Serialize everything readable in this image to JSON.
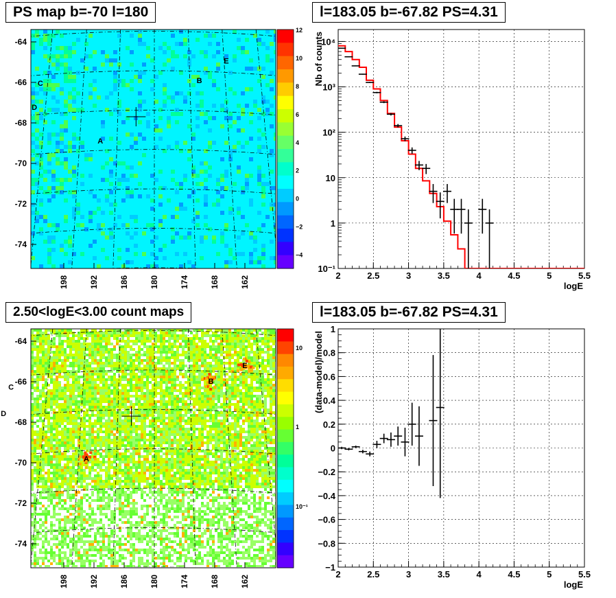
{
  "chart_data": [
    {
      "type": "heatmap",
      "title": "PS map b=-70 l=180",
      "x_ticks": [
        "198",
        "192",
        "186",
        "180",
        "174",
        "168",
        "162"
      ],
      "y_ticks": [
        "-64",
        "-66",
        "-68",
        "-70",
        "-72",
        "-74"
      ],
      "colorbar_ticks": [
        "12",
        "10",
        "8",
        "6",
        "4",
        "2",
        "0",
        "−2",
        "−4"
      ],
      "colorbar_range": [
        -5,
        12
      ],
      "sources": [
        {
          "name": "A",
          "l": 189.0,
          "b": -69.0
        },
        {
          "name": "B",
          "l": 172.5,
          "b": -65.95
        },
        {
          "name": "C",
          "l": 199.0,
          "b": -65.9
        },
        {
          "name": "D",
          "l": 200.0,
          "b": -67.1
        },
        {
          "name": "E",
          "l": 168.0,
          "b": -64.9
        }
      ],
      "marker": {
        "l": 183.05,
        "b": -67.82
      },
      "colors": {
        "background": "#00f5ff",
        "patch_light": "#00ff99",
        "patch_green": "#4dff4d",
        "patch_blue": "#00ccff",
        "patch_dark": "#009dff"
      }
    },
    {
      "type": "line",
      "title": "l=183.05 b=-67.82 PS=4.31",
      "xlabel": "logE",
      "ylabel": "Nb of counts",
      "xlim": [
        2,
        5.5
      ],
      "ylim": [
        0.1,
        10000
      ],
      "yscale": "log",
      "grid": true,
      "x_ticks": [
        "2",
        "2.5",
        "3",
        "3.5",
        "4",
        "4.5",
        "5",
        "5.5"
      ],
      "y_ticks": [
        "10⁴",
        "10³",
        "10²",
        "10",
        "1",
        "10⁻¹"
      ],
      "data_points": [
        {
          "x": 2.05,
          "y": 7100
        },
        {
          "x": 2.15,
          "y": 4600
        },
        {
          "x": 2.25,
          "y": 2900
        },
        {
          "x": 2.35,
          "y": 1900
        },
        {
          "x": 2.45,
          "y": 1250
        },
        {
          "x": 2.55,
          "y": 750
        },
        {
          "x": 2.65,
          "y": 460
        },
        {
          "x": 2.75,
          "y": 250
        },
        {
          "x": 2.85,
          "y": 140
        },
        {
          "x": 2.95,
          "y": 72
        },
        {
          "x": 3.05,
          "y": 40
        },
        {
          "x": 3.15,
          "y": 19
        },
        {
          "x": 3.25,
          "y": 16
        },
        {
          "x": 3.35,
          "y": 5
        },
        {
          "x": 3.45,
          "y": 3
        },
        {
          "x": 3.55,
          "y": 5
        },
        {
          "x": 3.65,
          "y": 2
        },
        {
          "x": 3.75,
          "y": 2
        },
        {
          "x": 3.85,
          "y": 1
        },
        {
          "x": 4.05,
          "y": 2
        },
        {
          "x": 4.15,
          "y": 1
        }
      ],
      "model_step": [
        {
          "x0": 2.0,
          "y": 8000
        },
        {
          "x0": 2.1,
          "y": 6000
        },
        {
          "x0": 2.2,
          "y": 4000
        },
        {
          "x0": 2.3,
          "y": 2700
        },
        {
          "x0": 2.4,
          "y": 1400
        },
        {
          "x0": 2.5,
          "y": 900
        },
        {
          "x0": 2.6,
          "y": 500
        },
        {
          "x0": 2.7,
          "y": 260
        },
        {
          "x0": 2.8,
          "y": 130
        },
        {
          "x0": 2.9,
          "y": 65
        },
        {
          "x0": 3.0,
          "y": 33
        },
        {
          "x0": 3.1,
          "y": 16
        },
        {
          "x0": 3.2,
          "y": 8.5
        },
        {
          "x0": 3.3,
          "y": 4.5
        },
        {
          "x0": 3.4,
          "y": 2.3
        },
        {
          "x0": 3.5,
          "y": 1.1
        },
        {
          "x0": 3.6,
          "y": 0.55
        },
        {
          "x0": 3.7,
          "y": 0.27
        },
        {
          "x0": 3.8,
          "y": 0.1
        },
        {
          "x0": 5.5,
          "y": 0.1
        }
      ],
      "colors": {
        "data": "#000000",
        "model": "#ff0000"
      }
    },
    {
      "type": "heatmap",
      "title": "2.50<logE<3.00 count maps",
      "x_ticks": [
        "198",
        "192",
        "186",
        "180",
        "174",
        "168",
        "162"
      ],
      "y_ticks": [
        "-64",
        "-66",
        "-68",
        "-70",
        "-72",
        "-74"
      ],
      "colorbar_ticks": [
        "10",
        "1",
        "10⁻¹"
      ],
      "colorbar_scale": "log",
      "sources": [
        {
          "name": "A",
          "l": 189.0,
          "b": -69.9
        },
        {
          "name": "B",
          "l": 172.5,
          "b": -66.0
        },
        {
          "name": "C",
          "l": 199.0,
          "b": -66.0
        },
        {
          "name": "D",
          "l": 200.0,
          "b": -67.3
        },
        {
          "name": "E",
          "l": 168.0,
          "b": -65.1
        }
      ],
      "marker": {
        "l": 183.05,
        "b": -67.82
      },
      "colors": {
        "green": "#66ff33",
        "yellow": "#ccff00",
        "light_green": "#99ff66",
        "white": "#ffffff",
        "orange": "#ffb200",
        "red": "#ff4400"
      }
    },
    {
      "type": "scatter",
      "title": "l=183.05 b=-67.82 PS=4.31",
      "xlabel": "logE",
      "ylabel": "(data-model)/model",
      "xlim": [
        2,
        5.5
      ],
      "ylim": [
        -1,
        1
      ],
      "grid": true,
      "x_ticks": [
        "2",
        "2.5",
        "3",
        "3.5",
        "4",
        "4.5",
        "5",
        "5.5"
      ],
      "y_ticks": [
        "1",
        "0.8",
        "0.6",
        "0.4",
        "0.2",
        "0",
        "−0.2",
        "−0.4",
        "−0.6",
        "−0.8",
        "−1"
      ],
      "data_points": [
        {
          "x": 2.05,
          "y": 0.0,
          "err": 0.01
        },
        {
          "x": 2.15,
          "y": -0.01,
          "err": 0.01
        },
        {
          "x": 2.25,
          "y": 0.01,
          "err": 0.01
        },
        {
          "x": 2.35,
          "y": -0.03,
          "err": 0.015
        },
        {
          "x": 2.45,
          "y": -0.05,
          "err": 0.02
        },
        {
          "x": 2.55,
          "y": 0.03,
          "err": 0.03
        },
        {
          "x": 2.65,
          "y": 0.08,
          "err": 0.04
        },
        {
          "x": 2.75,
          "y": 0.07,
          "err": 0.06
        },
        {
          "x": 2.85,
          "y": 0.1,
          "err": 0.08
        },
        {
          "x": 2.95,
          "y": 0.05,
          "err": 0.12
        },
        {
          "x": 3.05,
          "y": 0.2,
          "err": 0.18
        },
        {
          "x": 3.15,
          "y": 0.1,
          "err": 0.25
        },
        {
          "x": 3.35,
          "y": 0.23,
          "err": 0.55
        },
        {
          "x": 3.45,
          "y": 0.34,
          "err": 0.76
        }
      ],
      "colors": {
        "data": "#000000"
      }
    }
  ]
}
